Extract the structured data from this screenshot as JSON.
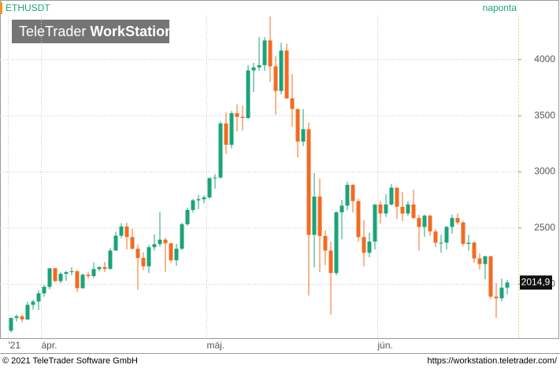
{
  "chart_data": {
    "type": "candlestick",
    "symbol": "ETHUSDT",
    "interval": "naponta",
    "logo": {
      "brand": "TeleTrader",
      "product": "WorkStation"
    },
    "footer": {
      "copyright": "© 2021 TeleTrader Software GmbH",
      "url": "https://workstation.teletrader.com/"
    },
    "up_color": "#1ba37a",
    "down_color": "#f26b21",
    "categories": [
      "'21",
      null,
      null,
      null,
      null,
      null,
      "ápr.",
      null,
      null,
      null,
      null,
      null,
      null,
      null,
      null,
      null,
      null,
      null,
      null,
      null,
      null,
      null,
      null,
      null,
      null,
      null,
      null,
      null,
      null,
      null,
      null,
      null,
      null,
      null,
      null,
      null,
      "máj.",
      null,
      null,
      null,
      null,
      null,
      null,
      null,
      null,
      null,
      null,
      null,
      null,
      null,
      null,
      null,
      null,
      null,
      null,
      null,
      null,
      null,
      null,
      null,
      null,
      null,
      null,
      null,
      null,
      null,
      null,
      "jún.",
      null,
      null,
      null,
      null,
      null,
      null,
      null,
      null,
      null,
      null,
      null,
      null,
      null,
      null,
      null,
      null,
      null,
      null,
      null,
      null,
      null,
      null,
      null
    ],
    "open": [
      1587,
      1700,
      1714,
      1687,
      1817,
      1846,
      1919,
      1977,
      2142,
      2028,
      2093,
      2108,
      2115,
      1965,
      2085,
      2073,
      2135,
      2153,
      2137,
      2300,
      2432,
      2514,
      2420,
      2316,
      2234,
      2160,
      2330,
      2357,
      2397,
      2364,
      2214,
      2316,
      2534,
      2662,
      2747,
      2757,
      2773,
      2945,
      2950,
      3431,
      3241,
      3522,
      3490,
      3480,
      3903,
      3930,
      3950,
      4170,
      3940,
      3720,
      4080,
      3655,
      3560,
      3270,
      3380,
      2440,
      2780,
      2430,
      2300,
      2100,
      2640,
      2700,
      2885,
      2740,
      2420,
      2280,
      2380,
      2710,
      2630,
      2710,
      2860,
      2690,
      2630,
      2710,
      2590,
      2510,
      2610,
      2470,
      2370,
      2370,
      2510,
      2590,
      2550,
      2360,
      2370,
      2230,
      2180,
      2250,
      1890,
      1875,
      1970
    ],
    "high": [
      1702,
      1732,
      1730,
      1845,
      1861,
      1947,
      1994,
      2145,
      2145,
      2110,
      2120,
      2150,
      2130,
      2095,
      2110,
      2195,
      2160,
      2200,
      2320,
      2468,
      2545,
      2548,
      2495,
      2355,
      2284,
      2350,
      2445,
      2645,
      2415,
      2370,
      2360,
      2547,
      2680,
      2760,
      2795,
      2790,
      2950,
      2980,
      3450,
      3530,
      3541,
      3600,
      3590,
      3950,
      3970,
      4200,
      4200,
      4382,
      4030,
      4150,
      4140,
      3870,
      3560,
      3560,
      3440,
      2990,
      2940,
      2480,
      2380,
      2650,
      2750,
      2910,
      2890,
      2760,
      2570,
      2460,
      2710,
      2740,
      2800,
      2890,
      2860,
      2820,
      2740,
      2840,
      2620,
      2620,
      2620,
      2490,
      2440,
      2520,
      2620,
      2630,
      2560,
      2440,
      2380,
      2275,
      2250,
      2250,
      2010,
      2050,
      2040
    ],
    "low": [
      1570,
      1670,
      1660,
      1680,
      1775,
      1770,
      1889,
      1955,
      2020,
      2010,
      2030,
      2080,
      1930,
      1960,
      2050,
      2055,
      2115,
      2110,
      2130,
      2300,
      2410,
      2310,
      2310,
      1950,
      2125,
      2100,
      2300,
      2335,
      2110,
      2190,
      2166,
      2305,
      2520,
      2640,
      2670,
      2720,
      2760,
      2850,
      2940,
      3160,
      3210,
      3360,
      3370,
      3470,
      3710,
      3900,
      3900,
      3800,
      3510,
      3690,
      3650,
      3400,
      3130,
      3230,
      1900,
      2150,
      2110,
      2170,
      1730,
      2080,
      2400,
      2660,
      2640,
      2380,
      2160,
      2240,
      2310,
      2540,
      2600,
      2700,
      2580,
      2560,
      2610,
      2580,
      2300,
      2420,
      2430,
      2330,
      2280,
      2310,
      2450,
      2530,
      2340,
      2300,
      2190,
      2130,
      2045,
      1870,
      1700,
      1850,
      1910
    ],
    "close": [
      1700,
      1714,
      1687,
      1817,
      1846,
      1919,
      1977,
      2142,
      2028,
      2093,
      2108,
      2115,
      1965,
      2085,
      2073,
      2135,
      2153,
      2137,
      2300,
      2432,
      2514,
      2420,
      2316,
      2234,
      2160,
      2330,
      2357,
      2397,
      2364,
      2214,
      2316,
      2534,
      2662,
      2747,
      2757,
      2773,
      2945,
      2950,
      3431,
      3241,
      3522,
      3490,
      3480,
      3903,
      3930,
      3950,
      4170,
      3940,
      3720,
      4080,
      3655,
      3560,
      3270,
      3380,
      2440,
      2780,
      2430,
      2300,
      2100,
      2640,
      2700,
      2885,
      2740,
      2420,
      2280,
      2380,
      2710,
      2630,
      2710,
      2860,
      2690,
      2630,
      2710,
      2590,
      2510,
      2610,
      2470,
      2370,
      2370,
      2510,
      2590,
      2550,
      2360,
      2370,
      2230,
      2180,
      2250,
      1890,
      1875,
      1970,
      2014.9
    ],
    "last_price": {
      "value": 2014.9,
      "label": "2014,9"
    },
    "ylim": [
      1520,
      4390
    ],
    "yticks": [
      2000,
      2500,
      3000,
      3500,
      4000
    ],
    "grid": true
  }
}
